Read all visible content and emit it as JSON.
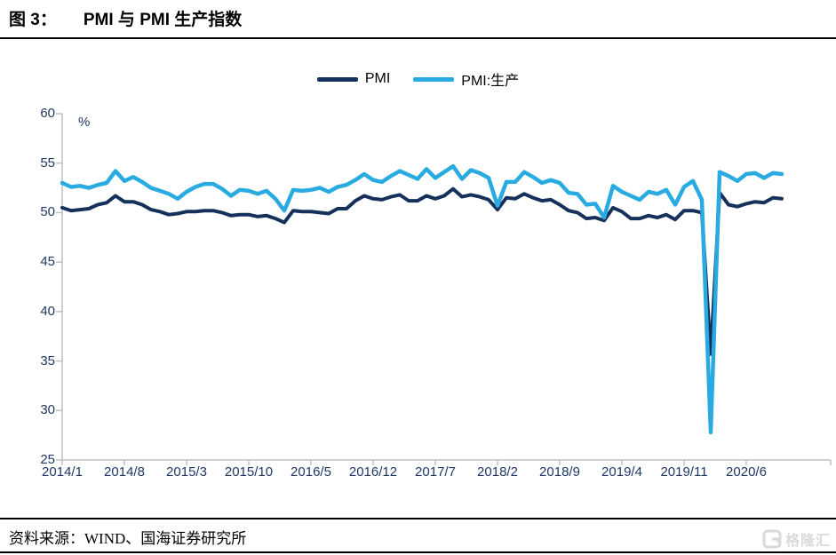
{
  "page": {
    "title_prefix": "图 3：",
    "title_text": "PMI 与 PMI 生产指数",
    "source_label": "资料来源：WIND、国海证券研究所",
    "watermark_text": "格隆汇"
  },
  "chart_data": {
    "type": "line",
    "title": "PMI 与 PMI 生产指数",
    "unit_label": "%",
    "ylim": [
      25,
      60
    ],
    "y_ticks": [
      "60",
      "55",
      "50",
      "45",
      "40",
      "35",
      "30",
      "25"
    ],
    "y_tick_values": [
      60,
      55,
      50,
      45,
      40,
      35,
      30,
      25
    ],
    "x_tick_labels": [
      "2014/1",
      "2014/8",
      "2015/3",
      "2015/10",
      "2016/5",
      "2016/12",
      "2017/7",
      "2018/2",
      "2018/9",
      "2019/4",
      "2019/11",
      "2020/6"
    ],
    "x_tick_month_indexes": [
      0,
      7,
      14,
      21,
      28,
      35,
      42,
      49,
      56,
      63,
      70,
      77
    ],
    "months_start": "2014/1",
    "months_end": "2020/10",
    "grid": "off",
    "legend_position": "top-center",
    "axis_color": "#C0C0C0",
    "tick_label_color": "#1F3864",
    "series": [
      {
        "name": "PMI",
        "color": "#16305C",
        "values": [
          50.5,
          50.2,
          50.3,
          50.4,
          50.8,
          51.0,
          51.7,
          51.1,
          51.1,
          50.8,
          50.3,
          50.1,
          49.8,
          49.9,
          50.1,
          50.1,
          50.2,
          50.2,
          50.0,
          49.7,
          49.8,
          49.8,
          49.6,
          49.7,
          49.4,
          49.0,
          50.2,
          50.1,
          50.1,
          50.0,
          49.9,
          50.4,
          50.4,
          51.2,
          51.7,
          51.4,
          51.3,
          51.6,
          51.8,
          51.2,
          51.2,
          51.7,
          51.4,
          51.7,
          52.4,
          51.6,
          51.8,
          51.6,
          51.3,
          50.3,
          51.5,
          51.4,
          51.9,
          51.5,
          51.2,
          51.3,
          50.8,
          50.2,
          50.0,
          49.4,
          49.5,
          49.2,
          50.5,
          50.1,
          49.4,
          49.4,
          49.7,
          49.5,
          49.8,
          49.3,
          50.2,
          50.2,
          50.0,
          35.7,
          52.0,
          50.8,
          50.6,
          50.9,
          51.1,
          51.0,
          51.5,
          51.4
        ]
      },
      {
        "name": "PMI:生产",
        "color": "#29ABE2",
        "values": [
          53.0,
          52.6,
          52.7,
          52.5,
          52.8,
          53.0,
          54.2,
          53.2,
          53.6,
          53.1,
          52.5,
          52.2,
          51.9,
          51.4,
          52.1,
          52.6,
          52.9,
          52.9,
          52.4,
          51.7,
          52.3,
          52.2,
          51.9,
          52.2,
          51.4,
          50.2,
          52.3,
          52.2,
          52.3,
          52.5,
          52.1,
          52.6,
          52.8,
          53.3,
          53.9,
          53.3,
          53.1,
          53.7,
          54.2,
          53.8,
          53.4,
          54.4,
          53.5,
          54.1,
          54.7,
          53.4,
          54.3,
          54.0,
          53.5,
          50.7,
          53.1,
          53.1,
          54.1,
          53.6,
          53.0,
          53.3,
          53.0,
          52.0,
          51.9,
          50.8,
          50.9,
          49.5,
          52.7,
          52.1,
          51.7,
          51.3,
          52.1,
          51.9,
          52.3,
          50.8,
          52.6,
          53.2,
          51.3,
          27.8,
          54.1,
          53.7,
          53.2,
          53.9,
          54.0,
          53.5,
          54.0,
          53.9
        ]
      }
    ]
  }
}
